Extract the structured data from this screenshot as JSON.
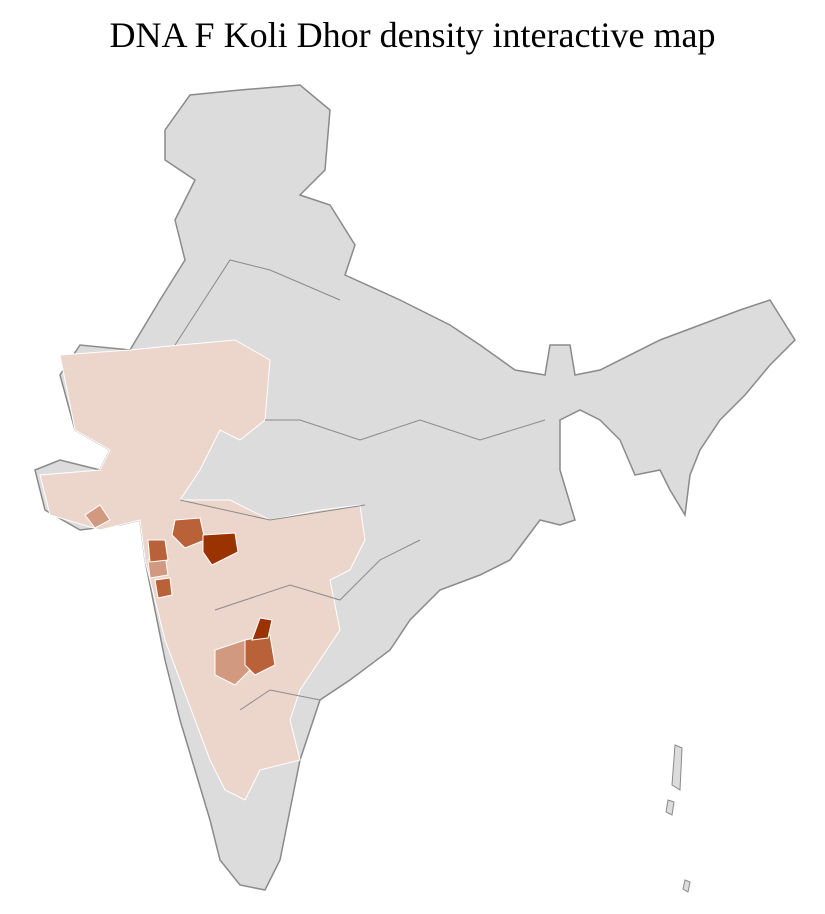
{
  "title": "DNA F Koli Dhor density interactive map",
  "colors": {
    "no_data": "#dcdcdc",
    "low": "#ecd6cc",
    "medium": "#d19a80",
    "high": "#b9623a",
    "highest": "#9a3300",
    "district_border": "#ffffff",
    "state_border": "#8a8a8a"
  }
}
